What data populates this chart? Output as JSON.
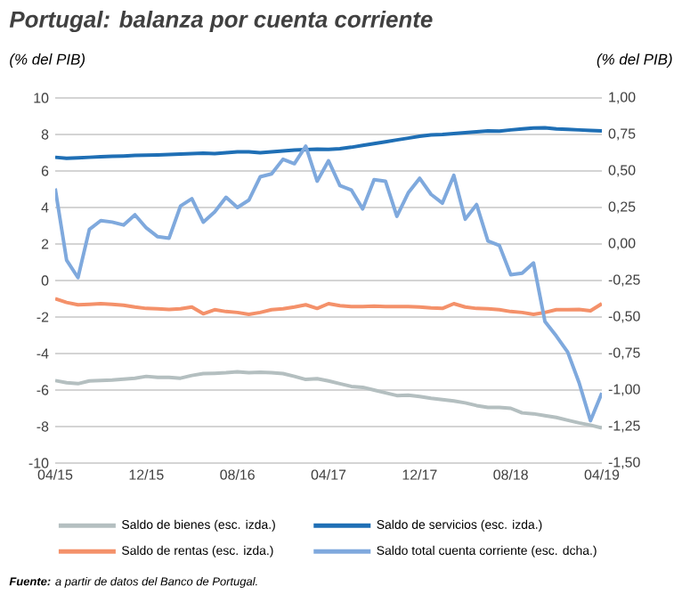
{
  "chart_data": {
    "type": "line",
    "title": "Portugal: balanza por cuenta corriente",
    "ylabel": "(% del PIB)",
    "y2label": "(% del PIB)",
    "categories": [
      "04/15",
      null,
      null,
      null,
      null,
      null,
      null,
      null,
      "12/15",
      null,
      null,
      null,
      null,
      null,
      null,
      null,
      "08/16",
      null,
      null,
      null,
      null,
      null,
      null,
      null,
      "04/17",
      null,
      null,
      null,
      null,
      null,
      null,
      null,
      "12/17",
      null,
      null,
      null,
      null,
      null,
      null,
      null,
      "08/18",
      null,
      null,
      null,
      null,
      null,
      null,
      null,
      "04/19"
    ],
    "series": [
      {
        "name": "Saldo de bienes (esc. izda.)",
        "color": "#b4bfc0",
        "values": [
          -5.48,
          -5.6,
          -5.65,
          -5.5,
          -5.48,
          -5.45,
          -5.4,
          -5.35,
          -5.25,
          -5.3,
          -5.3,
          -5.35,
          -5.2,
          -5.1,
          -5.08,
          -5.05,
          -5.0,
          -5.05,
          -5.02,
          -5.05,
          -5.1,
          -5.25,
          -5.42,
          -5.38,
          -5.5,
          -5.65,
          -5.8,
          -5.85,
          -6.0,
          -6.15,
          -6.3,
          -6.28,
          -6.35,
          -6.45,
          -6.52,
          -6.6,
          -6.7,
          -6.85,
          -6.95,
          -6.95,
          -7.0,
          -7.25,
          -7.3,
          -7.4,
          -7.5,
          -7.65,
          -7.8,
          -7.92,
          -8.08
        ]
      },
      {
        "name": "Saldo de servicios (esc. izda.)",
        "color": "#1f6fb5",
        "values": [
          6.75,
          6.7,
          6.72,
          6.75,
          6.78,
          6.8,
          6.82,
          6.85,
          6.87,
          6.88,
          6.9,
          6.93,
          6.95,
          6.98,
          6.95,
          7.0,
          7.05,
          7.05,
          7.0,
          7.05,
          7.1,
          7.15,
          7.17,
          7.2,
          7.18,
          7.22,
          7.3,
          7.4,
          7.5,
          7.6,
          7.7,
          7.8,
          7.9,
          7.98,
          8.0,
          8.05,
          8.1,
          8.15,
          8.2,
          8.18,
          8.25,
          8.3,
          8.35,
          8.37,
          8.3,
          8.28,
          8.25,
          8.22,
          8.2
        ]
      },
      {
        "name": "Saldo de rentas (esc. izda.)",
        "color": "#f4916a",
        "values": [
          -1.0,
          -1.2,
          -1.33,
          -1.3,
          -1.27,
          -1.3,
          -1.35,
          -1.45,
          -1.53,
          -1.55,
          -1.59,
          -1.55,
          -1.45,
          -1.82,
          -1.6,
          -1.7,
          -1.75,
          -1.85,
          -1.75,
          -1.6,
          -1.55,
          -1.45,
          -1.33,
          -1.53,
          -1.27,
          -1.38,
          -1.43,
          -1.43,
          -1.4,
          -1.43,
          -1.43,
          -1.43,
          -1.45,
          -1.5,
          -1.53,
          -1.27,
          -1.45,
          -1.53,
          -1.55,
          -1.6,
          -1.7,
          -1.75,
          -1.85,
          -1.75,
          -1.6,
          -1.6,
          -1.59,
          -1.66,
          -1.27
        ]
      },
      {
        "name": "Saldo total cuenta corriente (esc. dcha.)",
        "color": "#7fa9dd",
        "axis": "y2",
        "values": [
          0.38,
          -0.11,
          -0.23,
          0.1,
          0.16,
          0.15,
          0.13,
          0.2,
          0.11,
          0.05,
          0.04,
          0.26,
          0.31,
          0.15,
          0.22,
          0.32,
          0.25,
          0.3,
          0.46,
          0.48,
          0.58,
          0.55,
          0.67,
          0.43,
          0.57,
          0.4,
          0.37,
          0.24,
          0.44,
          0.43,
          0.19,
          0.35,
          0.45,
          0.34,
          0.28,
          0.47,
          0.17,
          0.27,
          0.02,
          -0.01,
          -0.21,
          -0.2,
          -0.13,
          -0.53,
          -0.63,
          -0.74,
          -0.95,
          -1.21,
          -1.02
        ]
      }
    ],
    "ylim": [
      -10,
      10
    ],
    "yticks": [
      -10,
      -8,
      -6,
      -4,
      -2,
      0,
      2,
      4,
      6,
      8,
      10
    ],
    "y2lim": [
      -1.5,
      1.0
    ],
    "y2ticks": [
      {
        "value": -1.5,
        "label": "-1,50"
      },
      {
        "value": -1.25,
        "label": "-1,25"
      },
      {
        "value": -1.0,
        "label": "-1,00"
      },
      {
        "value": -0.75,
        "label": "-0,75"
      },
      {
        "value": -0.5,
        "label": "-0,50"
      },
      {
        "value": -0.25,
        "label": "-0,25"
      },
      {
        "value": 0,
        "label": "0,00"
      },
      {
        "value": 0.25,
        "label": "0,25"
      },
      {
        "value": 0.5,
        "label": "0,50"
      },
      {
        "value": 0.75,
        "label": "0,75"
      },
      {
        "value": 1.0,
        "label": "1,00"
      }
    ],
    "grid": "y",
    "legend": "bottom",
    "annotations": [
      "**Fuente:** a partir de datos del Banco de Portugal."
    ]
  }
}
